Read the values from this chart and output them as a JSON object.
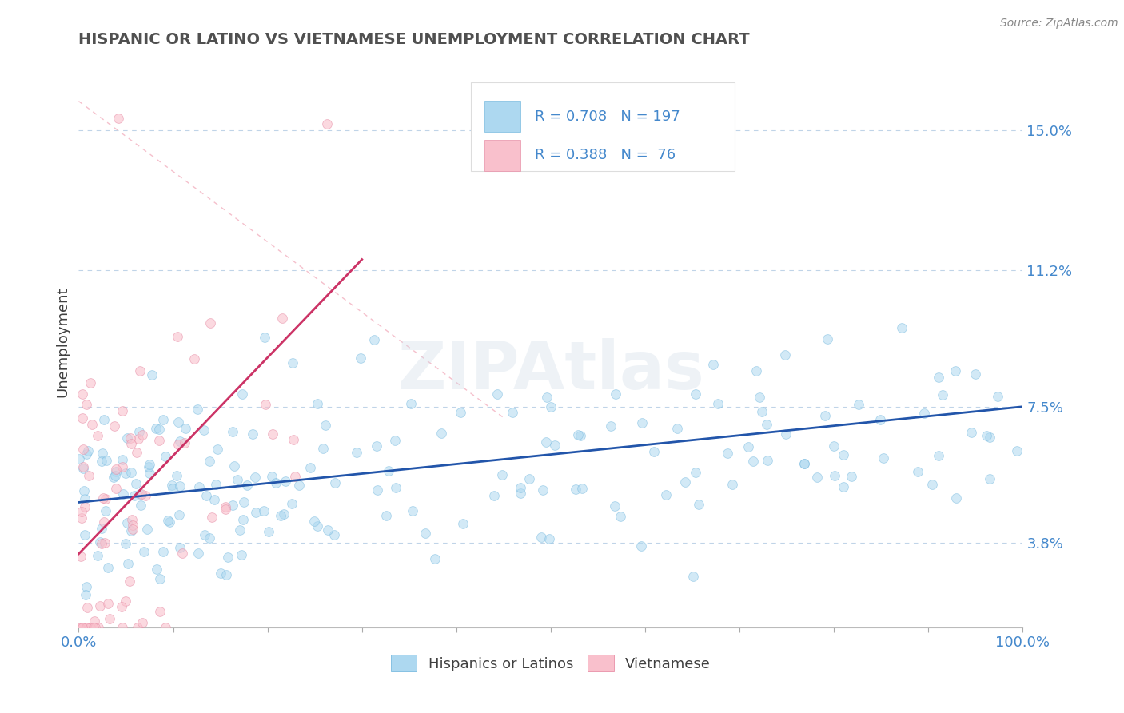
{
  "title": "HISPANIC OR LATINO VS VIETNAMESE UNEMPLOYMENT CORRELATION CHART",
  "source_text": "Source: ZipAtlas.com",
  "ylabel": "Unemployment",
  "y_tick_values": [
    3.8,
    7.5,
    11.2,
    15.0
  ],
  "y_tick_labels": [
    "3.8%",
    "7.5%",
    "11.2%",
    "15.0%"
  ],
  "xlim": [
    0,
    100
  ],
  "ylim": [
    1.5,
    17.0
  ],
  "blue_color": "#ADD8F0",
  "blue_edge_color": "#7ABBE0",
  "pink_color": "#F9C0CC",
  "pink_edge_color": "#E890A8",
  "trend_blue_color": "#2255AA",
  "trend_pink_color": "#CC3366",
  "diagonal_color": "#F5C0CC",
  "grid_color": "#C0D4E8",
  "title_color": "#505050",
  "axis_label_color": "#404040",
  "tick_label_color": "#4488CC",
  "watermark": "ZIPAtlas",
  "blue_R": 0.708,
  "blue_N": 197,
  "pink_R": 0.388,
  "pink_N": 76,
  "marker_size": 72,
  "alpha_blue": 0.55,
  "alpha_pink": 0.6
}
